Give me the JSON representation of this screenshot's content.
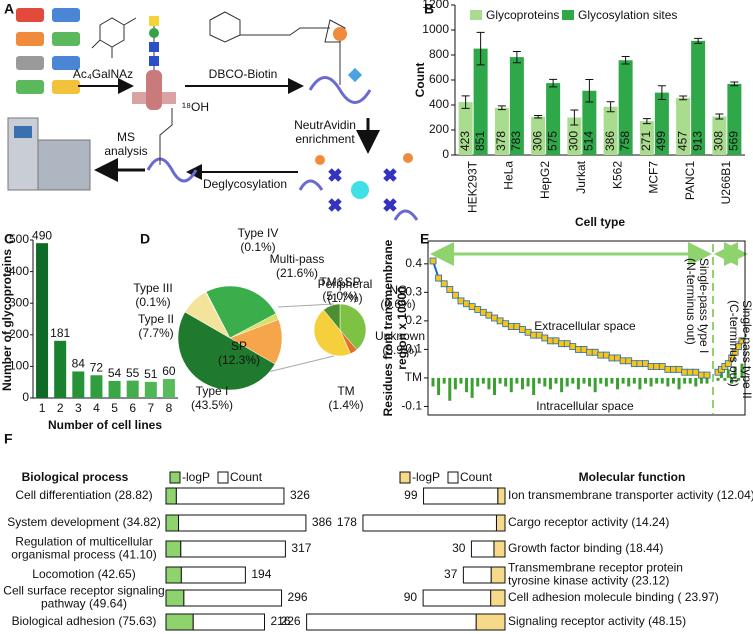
{
  "panel_labels": [
    "A",
    "B",
    "C",
    "D",
    "E",
    "F"
  ],
  "diagram": {
    "reagent": "Ac₄GalNAz",
    "probe": "DBCO-Biotin",
    "enrichment": [
      "NeutrAvidin",
      "enrichment"
    ],
    "deglycosylation": "Deglycosylation",
    "analysis": [
      "MS",
      "analysis"
    ],
    "isotope": "¹⁸OH"
  },
  "chart_data": [
    {
      "type": "grouped-bar",
      "ylabel": "Count",
      "xlabel": "Cell type",
      "legend": "top",
      "categories": [
        "HEK293T",
        "HeLa",
        "HepG2",
        "Jurkat",
        "K562",
        "MCF7",
        "PANC1",
        "U266B1"
      ],
      "series": [
        {
          "name": "Glycoproteins",
          "color": "#a9dc8e",
          "values": [
            423,
            378,
            306,
            300,
            386,
            271,
            457,
            308
          ],
          "errors": [
            50,
            15,
            10,
            60,
            40,
            20,
            15,
            20
          ]
        },
        {
          "name": "Glycosylation sites",
          "color": "#2fa84a",
          "values": [
            851,
            783,
            575,
            514,
            758,
            499,
            913,
            569
          ],
          "errors": [
            130,
            45,
            30,
            90,
            30,
            55,
            20,
            15
          ]
        }
      ],
      "ylim": [
        0,
        1200
      ],
      "yticks": [
        0,
        200,
        400,
        600,
        800,
        1000,
        1200
      ]
    },
    {
      "type": "bar",
      "ylabel": "Number of glycoproteins",
      "xlabel": "Number of cell lines",
      "categories": [
        "1",
        "2",
        "3",
        "4",
        "5",
        "6",
        "7",
        "8"
      ],
      "values": [
        490,
        181,
        84,
        72,
        54,
        55,
        51,
        60
      ],
      "colors": [
        "#0e6b27",
        "#1a812f",
        "#279339",
        "#2f9d40",
        "#3aa747",
        "#44ae4d",
        "#4fb555",
        "#5abb5c"
      ],
      "ylim": [
        0,
        500
      ],
      "yticks": [
        0,
        100,
        200,
        300,
        400,
        500
      ]
    },
    {
      "type": "pie",
      "categories": [
        "Type I",
        "Type II",
        "Type III",
        "Type IV",
        "Multi-pass",
        "Peripheral",
        "SP"
      ],
      "values": [
        43.5,
        7.7,
        0.1,
        0.1,
        21.6,
        1.7,
        12.3
      ],
      "value_labels": [
        "(43.5%)",
        "(7.7%)",
        "(0.1%)",
        "(0.1%)",
        "(21.6%)",
        "(1.7%)",
        "(12.3%)"
      ],
      "colors": [
        "#1f7a2e",
        "#f4e39a",
        "#c9c96a",
        "#8fbf3f",
        "#3aae4a",
        "#d8e06a",
        "#f7a54a"
      ]
    },
    {
      "type": "pie",
      "categories": [
        "TM&SP",
        "NC",
        "Unknown",
        "TM"
      ],
      "values": [
        5.0,
        0.6,
        5.9,
        1.4
      ],
      "value_labels": [
        "(5.0%)",
        "(0.6%)",
        "(5.9%)",
        "(1.4%)"
      ],
      "colors": [
        "#7dc242",
        "#e5702a",
        "#f5d03c",
        "#4d8f2e"
      ]
    },
    {
      "type": "profile",
      "ylabel": [
        "Residues from transmembrane",
        "region x 10000"
      ],
      "annotations": [
        "Extracellular space",
        "Intracellular space"
      ],
      "regions": [
        [
          "Single-pass type I",
          "(N-terminus out)"
        ],
        [
          "Single-pass type II",
          "(C-terminus out)"
        ]
      ],
      "series": [
        {
          "color": "#f5c518",
          "edge_color": "#2468b4",
          "values": [
            0.41,
            0.35,
            0.33,
            0.31,
            0.29,
            0.27,
            0.26,
            0.25,
            0.24,
            0.23,
            0.22,
            0.21,
            0.2,
            0.19,
            0.18,
            0.18,
            0.17,
            0.16,
            0.15,
            0.15,
            0.14,
            0.13,
            0.13,
            0.12,
            0.12,
            0.11,
            0.1,
            0.1,
            0.09,
            0.09,
            0.08,
            0.08,
            0.07,
            0.07,
            0.06,
            0.06,
            0.05,
            0.05,
            0.05,
            0.04,
            0.04,
            0.04,
            0.03,
            0.03,
            0.03,
            0.02,
            0.02,
            0.02,
            0.01,
            0.01,
            null,
            0.02,
            0.03,
            0.04,
            0.05,
            0.07,
            0.09,
            0.11,
            0.13
          ]
        },
        {
          "color": "#3aa02f",
          "values": [
            -0.03,
            -0.06,
            -0.02,
            -0.08,
            -0.04,
            -0.02,
            -0.05,
            -0.07,
            -0.03,
            -0.02,
            -0.04,
            -0.06,
            -0.02,
            -0.03,
            -0.05,
            -0.02,
            -0.04,
            -0.03,
            -0.06,
            -0.02,
            -0.03,
            -0.04,
            -0.02,
            -0.05,
            -0.03,
            -0.02,
            -0.04,
            -0.02,
            -0.03,
            -0.05,
            -0.02,
            -0.03,
            -0.02,
            -0.04,
            -0.02,
            -0.03,
            -0.02,
            -0.04,
            -0.02,
            -0.03,
            -0.02,
            -0.02,
            -0.03,
            -0.02,
            -0.04,
            -0.02,
            -0.02,
            -0.03,
            -0.02,
            -0.02,
            null,
            -0.01,
            0.02,
            -0.01,
            0.03,
            -0.02,
            0.04,
            -0.01,
            0.05
          ]
        }
      ],
      "ylim": [
        -0.13,
        0.48
      ],
      "yticks": [
        -0.1,
        {
          "value": 0,
          "label": "TM"
        },
        0.1,
        0.2,
        0.3,
        0.4
      ]
    },
    {
      "type": "barh",
      "side": "left",
      "title": "Biological process",
      "categories": [
        [
          "Cell differentiation (28.82)"
        ],
        [
          "System development (34.82)"
        ],
        [
          "Regulation of multicellular",
          "organismal process (41.10)"
        ],
        [
          "Locomotion (42.65)"
        ],
        [
          "Cell surface receptor signaling",
          "pathway (49.64)"
        ],
        [
          "Biological adhesion (75.63)"
        ]
      ],
      "series": [
        {
          "name": "-logP",
          "color": "#8fd36f",
          "values": [
            28.82,
            34.82,
            41.1,
            42.65,
            49.64,
            75.63
          ]
        },
        {
          "name": "Count",
          "color": "#ffffff",
          "values": [
            326,
            386,
            317,
            194,
            296,
            216
          ]
        }
      ]
    },
    {
      "type": "barh",
      "side": "right",
      "title": "Molecular function",
      "categories": [
        [
          "Ion transmembrane transporter activity (12.04)"
        ],
        [
          "Cargo receptor activity (14.24)"
        ],
        [
          "Growth factor binding (18.44)"
        ],
        [
          "Transmembrane receptor protein",
          "tyrosine kinase activity (23.12)"
        ],
        [
          "Cell adhesion molecule binding ( 23.97)"
        ],
        [
          "Signaling receptor activity (48.15)"
        ]
      ],
      "series": [
        {
          "name": "-logP",
          "color": "#f7d98a",
          "values": [
            12.04,
            14.24,
            18.44,
            23.12,
            23.97,
            48.15
          ]
        },
        {
          "name": "Count",
          "color": "#ffffff",
          "values": [
            99,
            178,
            30,
            37,
            90,
            226
          ]
        }
      ]
    }
  ]
}
